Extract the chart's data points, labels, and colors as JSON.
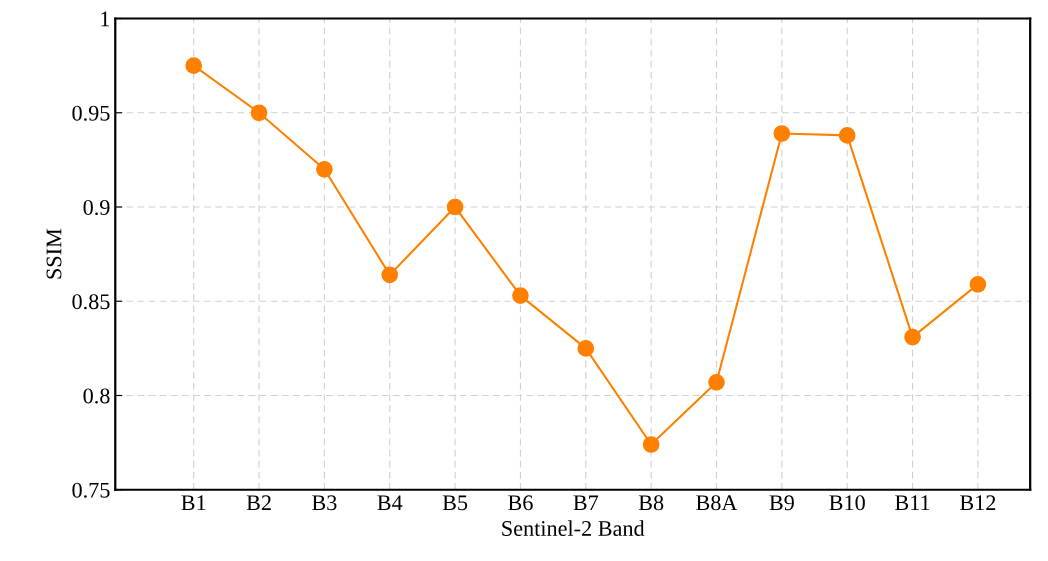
{
  "chart_data": {
    "type": "line",
    "xlabel": "Sentinel-2 Band",
    "ylabel": "SSIM",
    "categories": [
      "B1",
      "B2",
      "B3",
      "B4",
      "B5",
      "B6",
      "B7",
      "B8",
      "B8A",
      "B9",
      "B10",
      "B11",
      "B12"
    ],
    "series": [
      {
        "color": "#ff8000",
        "values": [
          0.975,
          0.95,
          0.92,
          0.864,
          0.9,
          0.853,
          0.825,
          0.774,
          0.807,
          0.939,
          0.938,
          0.831,
          0.859
        ]
      }
    ],
    "ylim": [
      0.75,
      1
    ],
    "yticks": [
      0.75,
      0.8,
      0.85,
      0.9,
      0.95,
      1
    ],
    "grid": true,
    "marker": "circle",
    "line_style": "solid"
  }
}
